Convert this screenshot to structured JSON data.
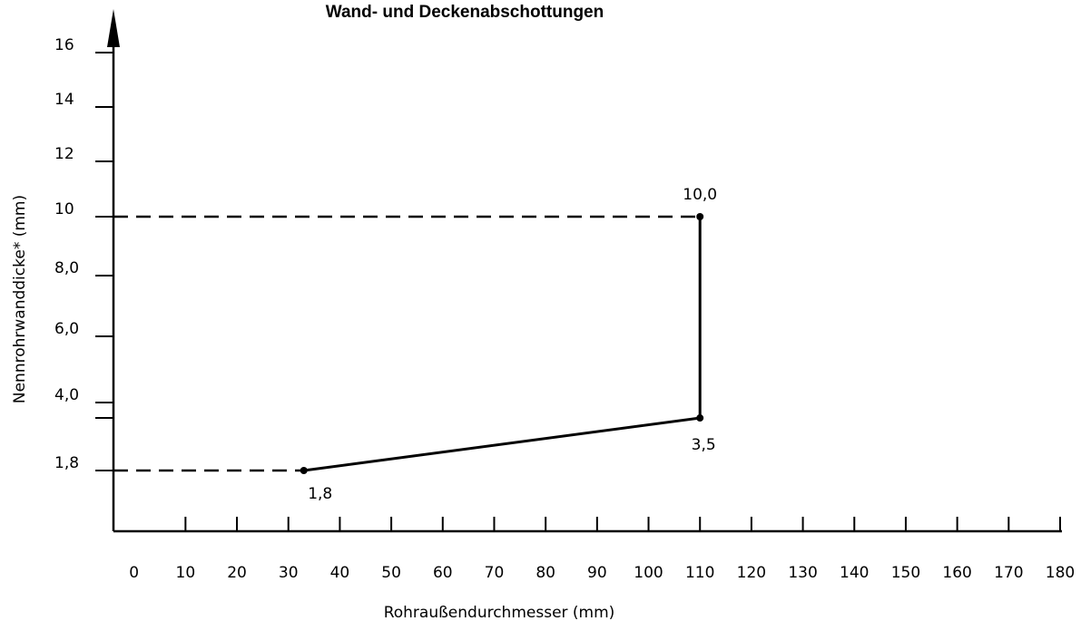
{
  "chart_data": {
    "type": "line",
    "title": "Wand- und Deckenabschottungen",
    "x_label": "Rohraußendurchmesser (mm)",
    "y_label": "Nennrohrwanddicke* (mm)",
    "x": [
      33,
      110,
      110
    ],
    "series": [
      {
        "color": "#000000",
        "values": [
          1.8,
          3.5,
          10
        ],
        "value_labels": [
          "1,8",
          "3,5",
          "10,0"
        ]
      }
    ],
    "xlim": [
      -4,
      180
    ],
    "xticks": [
      0,
      10,
      20,
      30,
      40,
      50,
      60,
      70,
      80,
      90,
      100,
      110,
      120,
      130,
      140,
      150,
      160,
      170,
      180
    ],
    "ylim": [
      0,
      18
    ],
    "yticks": [
      {
        "value": 1.8,
        "label": "1,8"
      },
      {
        "value": 4,
        "label": "4,0"
      },
      {
        "value": 6,
        "label": "6,0"
      },
      {
        "value": 8,
        "label": "8,0"
      },
      10,
      12,
      14,
      16
    ]
  }
}
